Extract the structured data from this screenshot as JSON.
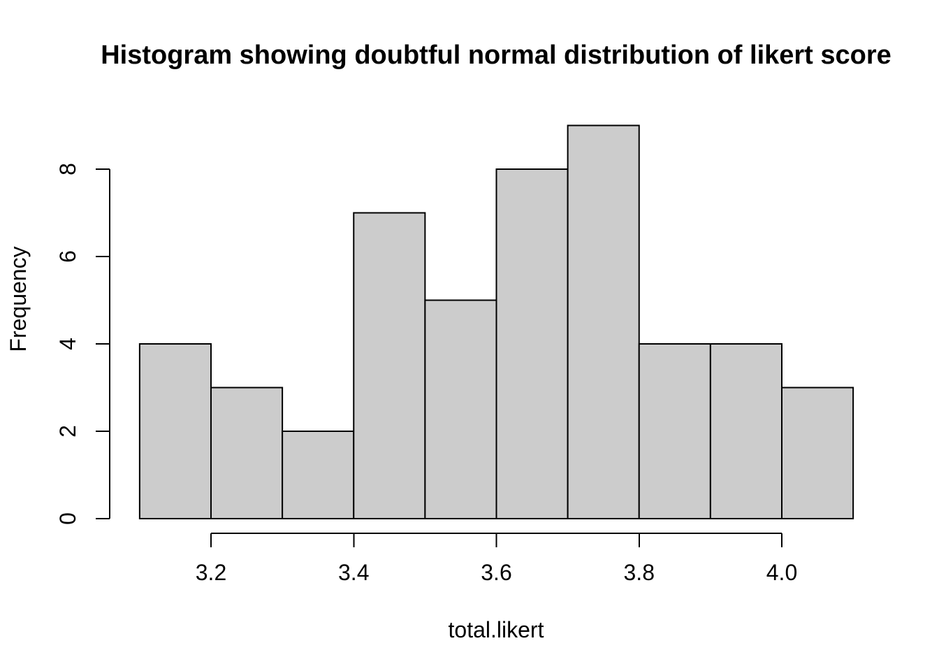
{
  "chart_data": {
    "type": "bar",
    "subtype": "histogram",
    "title": "Histogram showing doubtful normal distribution of likert score",
    "xlabel": "total.likert",
    "ylabel": "Frequency",
    "bin_edges": [
      3.1,
      3.2,
      3.3,
      3.4,
      3.5,
      3.6,
      3.7,
      3.8,
      3.9,
      4.0,
      4.1
    ],
    "counts": [
      4,
      3,
      2,
      7,
      5,
      8,
      9,
      4,
      4,
      3
    ],
    "x_ticks": [
      3.2,
      3.4,
      3.6,
      3.8,
      4.0
    ],
    "x_tick_labels": [
      "3.2",
      "3.4",
      "3.6",
      "3.8",
      "4.0"
    ],
    "y_ticks": [
      0,
      2,
      4,
      6,
      8
    ],
    "y_tick_labels": [
      "0",
      "2",
      "4",
      "6",
      "8"
    ],
    "xlim": [
      3.1,
      4.1
    ],
    "ylim": [
      0,
      9
    ],
    "grid": false,
    "legend": null,
    "bar_fill": "#CCCCCC",
    "bar_stroke": "#000000",
    "axis_color": "#000000",
    "text_color": "#000000",
    "background": "#FFFFFF"
  }
}
